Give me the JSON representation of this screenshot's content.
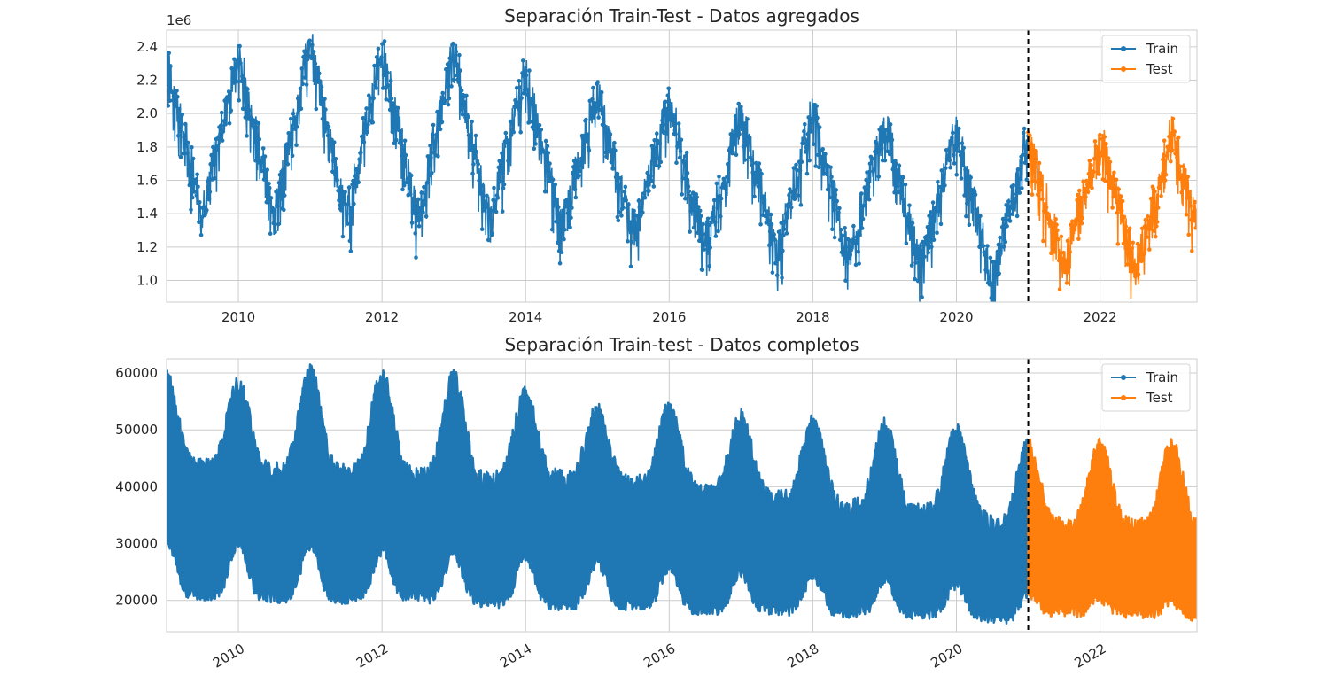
{
  "chart_data": [
    {
      "type": "line",
      "title": "Separación Train-Test - Datos agregados",
      "xlabel": "",
      "ylabel": "",
      "y_offset_label": "1e6",
      "x_ticks": [
        "2010",
        "2012",
        "2014",
        "2016",
        "2018",
        "2020",
        "2022"
      ],
      "x_tick_rotation": 0,
      "y_ticks": [
        "1.0",
        "1.2",
        "1.4",
        "1.6",
        "1.8",
        "2.0",
        "2.2",
        "2.4"
      ],
      "xlim": [
        2009.0,
        2023.35
      ],
      "ylim": [
        870000,
        2500000
      ],
      "split_year": 2021.0,
      "grid": true,
      "legend_position": "upper right",
      "series": [
        {
          "name": "Train",
          "color": "#1f77b4",
          "x_start": 2009.0,
          "x_end": 2021.0,
          "annual_peaks_winter": [
            2300000,
            2350000,
            2420000,
            2380000,
            2380000,
            2250000,
            2120000,
            2080000,
            2000000,
            2020000,
            1950000,
            1900000,
            1880000
          ],
          "annual_troughs_summer": [
            1450000,
            1420000,
            1410000,
            1400000,
            1380000,
            1350000,
            1300000,
            1230000,
            1170000,
            1140000,
            1100000,
            950000
          ],
          "noise_band": 150000
        },
        {
          "name": "Test",
          "color": "#ff7f0e",
          "x_start": 2021.0,
          "x_end": 2023.35,
          "annual_peaks_winter": [
            1830000,
            1860000,
            1920000
          ],
          "annual_troughs_summer": [
            1150000,
            1070000
          ],
          "noise_band": 150000
        }
      ]
    },
    {
      "type": "line",
      "title": "Separación Train-test - Datos completos",
      "xlabel": "",
      "ylabel": "",
      "x_ticks": [
        "2010",
        "2012",
        "2014",
        "2016",
        "2018",
        "2020",
        "2022"
      ],
      "x_tick_rotation": -30,
      "y_ticks": [
        "20000",
        "30000",
        "40000",
        "50000",
        "60000"
      ],
      "xlim": [
        2009.0,
        2023.35
      ],
      "ylim": [
        14500,
        62500
      ],
      "split_year": 2021.0,
      "grid": true,
      "legend_position": "upper right",
      "series": [
        {
          "name": "Train",
          "color": "#1f77b4",
          "x_start": 2009.0,
          "x_end": 2021.0,
          "annual_max_winter": [
            59000,
            58000,
            60000,
            59500,
            59000,
            56500,
            53000,
            53500,
            52000,
            51000,
            50500,
            49500,
            47500
          ],
          "annual_max_summer": [
            43500,
            43000,
            42500,
            42000,
            41000,
            41500,
            40500,
            39000,
            37500,
            36000,
            35500,
            32000
          ],
          "annual_min_summer": [
            21500,
            21000,
            20500,
            21000,
            20000,
            19500,
            19500,
            18500,
            18500,
            18000,
            18000,
            16500
          ],
          "annual_min_winter": [
            31000,
            30500,
            30000,
            29000,
            28500,
            28000,
            27000,
            26000,
            25000,
            24500,
            24000,
            23000,
            21500
          ]
        },
        {
          "name": "Test",
          "color": "#ff7f0e",
          "x_start": 2021.0,
          "x_end": 2023.35,
          "annual_max_winter": [
            47000,
            47000,
            47000
          ],
          "annual_max_summer": [
            33000,
            33000
          ],
          "annual_min_summer": [
            18500,
            17500
          ],
          "annual_min_winter": [
            21500,
            20500,
            20000
          ]
        }
      ]
    }
  ]
}
